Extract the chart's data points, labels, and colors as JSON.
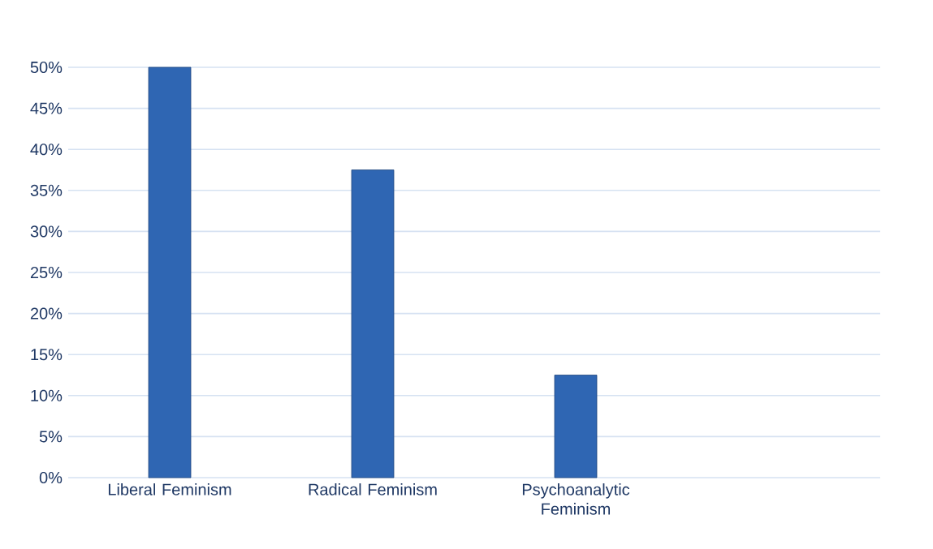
{
  "chart_data": {
    "type": "bar",
    "categories": [
      "Liberal Feminism",
      "Radical Feminism",
      "Psychoanalytic\nFeminism",
      null
    ],
    "values": [
      50,
      37.5,
      12.5,
      null
    ],
    "color": "#2f66b3",
    "ylim": [
      0,
      50
    ],
    "yticks": [
      {
        "value": 0,
        "label": "0%"
      },
      {
        "value": 5,
        "label": "5%"
      },
      {
        "value": 10,
        "label": "10%"
      },
      {
        "value": 15,
        "label": "15%"
      },
      {
        "value": 20,
        "label": "20%"
      },
      {
        "value": 25,
        "label": "25%"
      },
      {
        "value": 30,
        "label": "30%"
      },
      {
        "value": 35,
        "label": "35%"
      },
      {
        "value": 40,
        "label": "40%"
      },
      {
        "value": 45,
        "label": "45%"
      },
      {
        "value": 50,
        "label": "50%"
      }
    ],
    "grid": "y"
  }
}
